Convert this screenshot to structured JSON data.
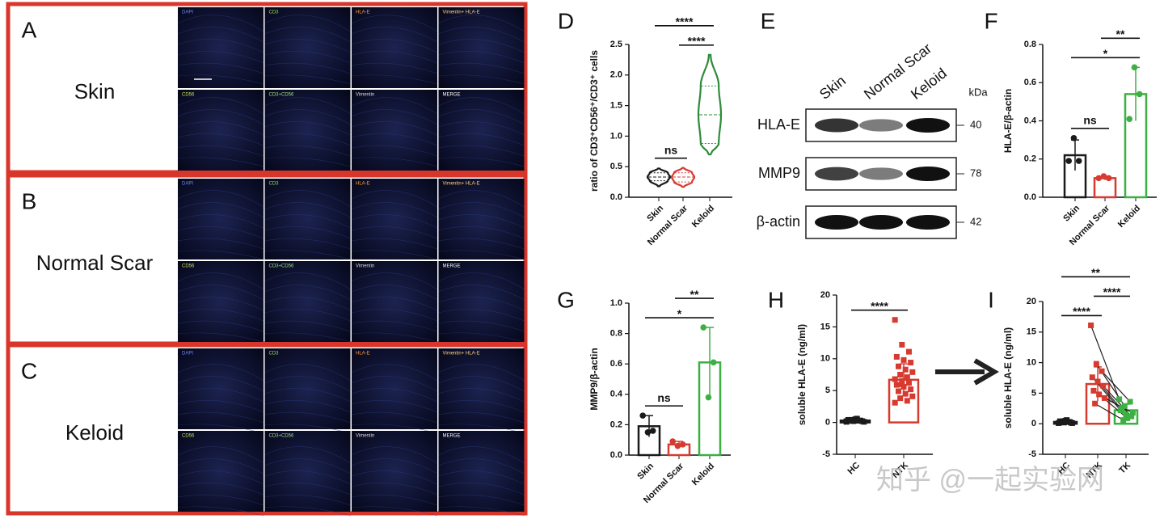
{
  "panels": [
    {
      "letter": "A",
      "label": "Skin",
      "tiles": [
        "DAPI",
        "CD3",
        "HLA-E",
        "Vimentin+ HLA-E",
        "CD56",
        "CD3+CD56",
        "Vimentin",
        "MERGE"
      ]
    },
    {
      "letter": "B",
      "label": "Normal Scar",
      "tiles": [
        "DAPI",
        "CD3",
        "HLA-E",
        "Vimentin+ HLA-E",
        "CD56",
        "CD3+CD56",
        "Vimentin",
        "MERGE"
      ]
    },
    {
      "letter": "C",
      "label": "Keloid",
      "tiles": [
        "DAPI",
        "CD3",
        "HLA-E",
        "Vimentin+ HLA-E",
        "CD56",
        "CD3+CD56",
        "Vimentin",
        "MERGE"
      ]
    }
  ],
  "blot": {
    "letter": "E",
    "lanes": [
      "Skin",
      "Normal Scar",
      "Keloid"
    ],
    "unit": "kDa",
    "rows": [
      {
        "name": "HLA-E",
        "size": "40"
      },
      {
        "name": "MMP9",
        "size": "78"
      },
      {
        "name": "β-actin",
        "size": "42"
      }
    ]
  },
  "watermark": "知乎 @一起实验网",
  "chart_data": [
    {
      "type": "violin",
      "letter": "D",
      "ylabel": "ratio of CD3⁺CD56⁺/CD3⁺ cells",
      "categories": [
        "Skin",
        "Normal Scar",
        "Keloid"
      ],
      "colors": [
        "#1a1a1a",
        "#d73a2f",
        "#2e8b3a"
      ],
      "min": [
        0.18,
        0.17,
        0.7
      ],
      "q1": [
        0.27,
        0.25,
        0.88
      ],
      "median": [
        0.33,
        0.33,
        1.35
      ],
      "q3": [
        0.4,
        0.4,
        1.82
      ],
      "max": [
        0.47,
        0.48,
        2.33
      ],
      "ylim": [
        0,
        2.5
      ],
      "yticks": [
        {
          "value": 0,
          "label": "0.0"
        },
        0.5,
        {
          "value": 1,
          "label": "1.0"
        },
        1.5,
        {
          "value": 2,
          "label": "2.0"
        },
        2.5
      ],
      "significance": [
        {
          "label": "ns",
          "from": 0,
          "to": 1
        },
        {
          "label": "****",
          "from": 1,
          "to": 2
        },
        {
          "label": "****",
          "from": 0,
          "to": 2
        }
      ]
    },
    {
      "type": "bar",
      "letter": "F",
      "ylabel": "HLA-E/β-actin",
      "marker": "circle",
      "categories": [
        "Skin",
        "Normal Scar",
        "Keloid"
      ],
      "colors": [
        "#1a1a1a",
        "#d73a2f",
        "#3cb043"
      ],
      "values": [
        0.22,
        0.1,
        0.54
      ],
      "errors": [
        0.08,
        0.01,
        0.14
      ],
      "points": [
        [
          0.19,
          0.31,
          0.19
        ],
        [
          0.1,
          0.11,
          0.1
        ],
        [
          0.41,
          0.68,
          0.54
        ]
      ],
      "ylim": [
        0,
        0.8
      ],
      "yticks": [
        {
          "value": 0,
          "label": "0.0"
        },
        0.2,
        0.4,
        0.6,
        0.8
      ],
      "significance": [
        {
          "label": "ns",
          "from": 0,
          "to": 1
        },
        {
          "label": "*",
          "from": 0,
          "to": 2
        },
        {
          "label": "**",
          "from": 1,
          "to": 2
        }
      ]
    },
    {
      "type": "bar",
      "letter": "G",
      "ylabel": "MMP9/β-actin",
      "marker": "circle",
      "categories": [
        "Skin",
        "Normal Scar",
        "Keloid"
      ],
      "colors": [
        "#1a1a1a",
        "#d73a2f",
        "#3cb043"
      ],
      "values": [
        0.19,
        0.07,
        0.61
      ],
      "errors": [
        0.07,
        0.02,
        0.23
      ],
      "points": [
        [
          0.26,
          0.15,
          0.16
        ],
        [
          0.09,
          0.06,
          0.07
        ],
        [
          0.84,
          0.38,
          0.61
        ]
      ],
      "ylim": [
        0,
        1
      ],
      "yticks": [
        {
          "value": 0,
          "label": "0.0"
        },
        0.2,
        0.4,
        0.6,
        0.8,
        {
          "value": 1,
          "label": "1.0"
        }
      ],
      "significance": [
        {
          "label": "ns",
          "from": 0,
          "to": 1
        },
        {
          "label": "*",
          "from": 0,
          "to": 2
        },
        {
          "label": "**",
          "from": 1,
          "to": 2
        }
      ]
    },
    {
      "type": "bar",
      "letter": "H",
      "ylabel": "soluble HLA-E (ng/ml)",
      "marker": "square",
      "categories": [
        "HC",
        "NTK"
      ],
      "colors": [
        "#1a1a1a",
        "#d73a2f"
      ],
      "values": [
        0.3,
        6.7
      ],
      "errors": [
        0.2,
        2.5
      ],
      "points": [
        [
          0.1,
          0.2,
          0.3,
          0.4,
          0.5,
          0.2,
          0.3,
          0.6,
          0.1,
          0.4,
          0.3,
          0.2
        ],
        [
          16.1,
          12.2,
          11.1,
          10.3,
          9.8,
          9.4,
          8.8,
          8.3,
          7.9,
          7.5,
          7.1,
          6.8,
          6.5,
          6.2,
          5.9,
          5.6,
          5.2,
          4.9,
          4.5,
          4.1,
          3.8,
          3.4,
          3.1,
          6.0
        ]
      ],
      "ylim": [
        -5,
        20
      ],
      "yticks": [
        -5,
        0,
        5,
        10,
        15,
        20
      ],
      "significance": [
        {
          "label": "****",
          "from": 0,
          "to": 1
        }
      ]
    },
    {
      "type": "bar",
      "letter": "I",
      "ylabel": "soluble HLA-E (ng/ml)",
      "marker": "square",
      "paired": true,
      "categories": [
        "HC",
        "NTK",
        "TK"
      ],
      "colors": [
        "#1a1a1a",
        "#d73a2f",
        "#3cb043"
      ],
      "values": [
        0.3,
        6.5,
        2.2
      ],
      "errors": [
        0.2,
        2.8,
        1.0
      ],
      "points": [
        [
          0.1,
          0.2,
          0.3,
          0.4,
          0.5,
          0.2,
          0.3,
          0.6,
          0.1,
          0.4
        ],
        [
          16.1,
          9.8,
          8.6,
          7.6,
          6.9,
          6.2,
          5.4,
          4.8,
          4.2,
          3.3
        ],
        [
          4.0,
          2.9,
          3.6,
          2.2,
          1.5,
          1.2,
          2.6,
          0.9,
          1.8,
          0.6
        ]
      ],
      "ylim": [
        -5,
        20
      ],
      "yticks": [
        -5,
        0,
        5,
        10,
        15,
        20
      ],
      "significance": [
        {
          "label": "****",
          "from": 0,
          "to": 1
        },
        {
          "label": "****",
          "from": 1,
          "to": 2
        },
        {
          "label": "**",
          "from": 0,
          "to": 2
        }
      ]
    }
  ]
}
